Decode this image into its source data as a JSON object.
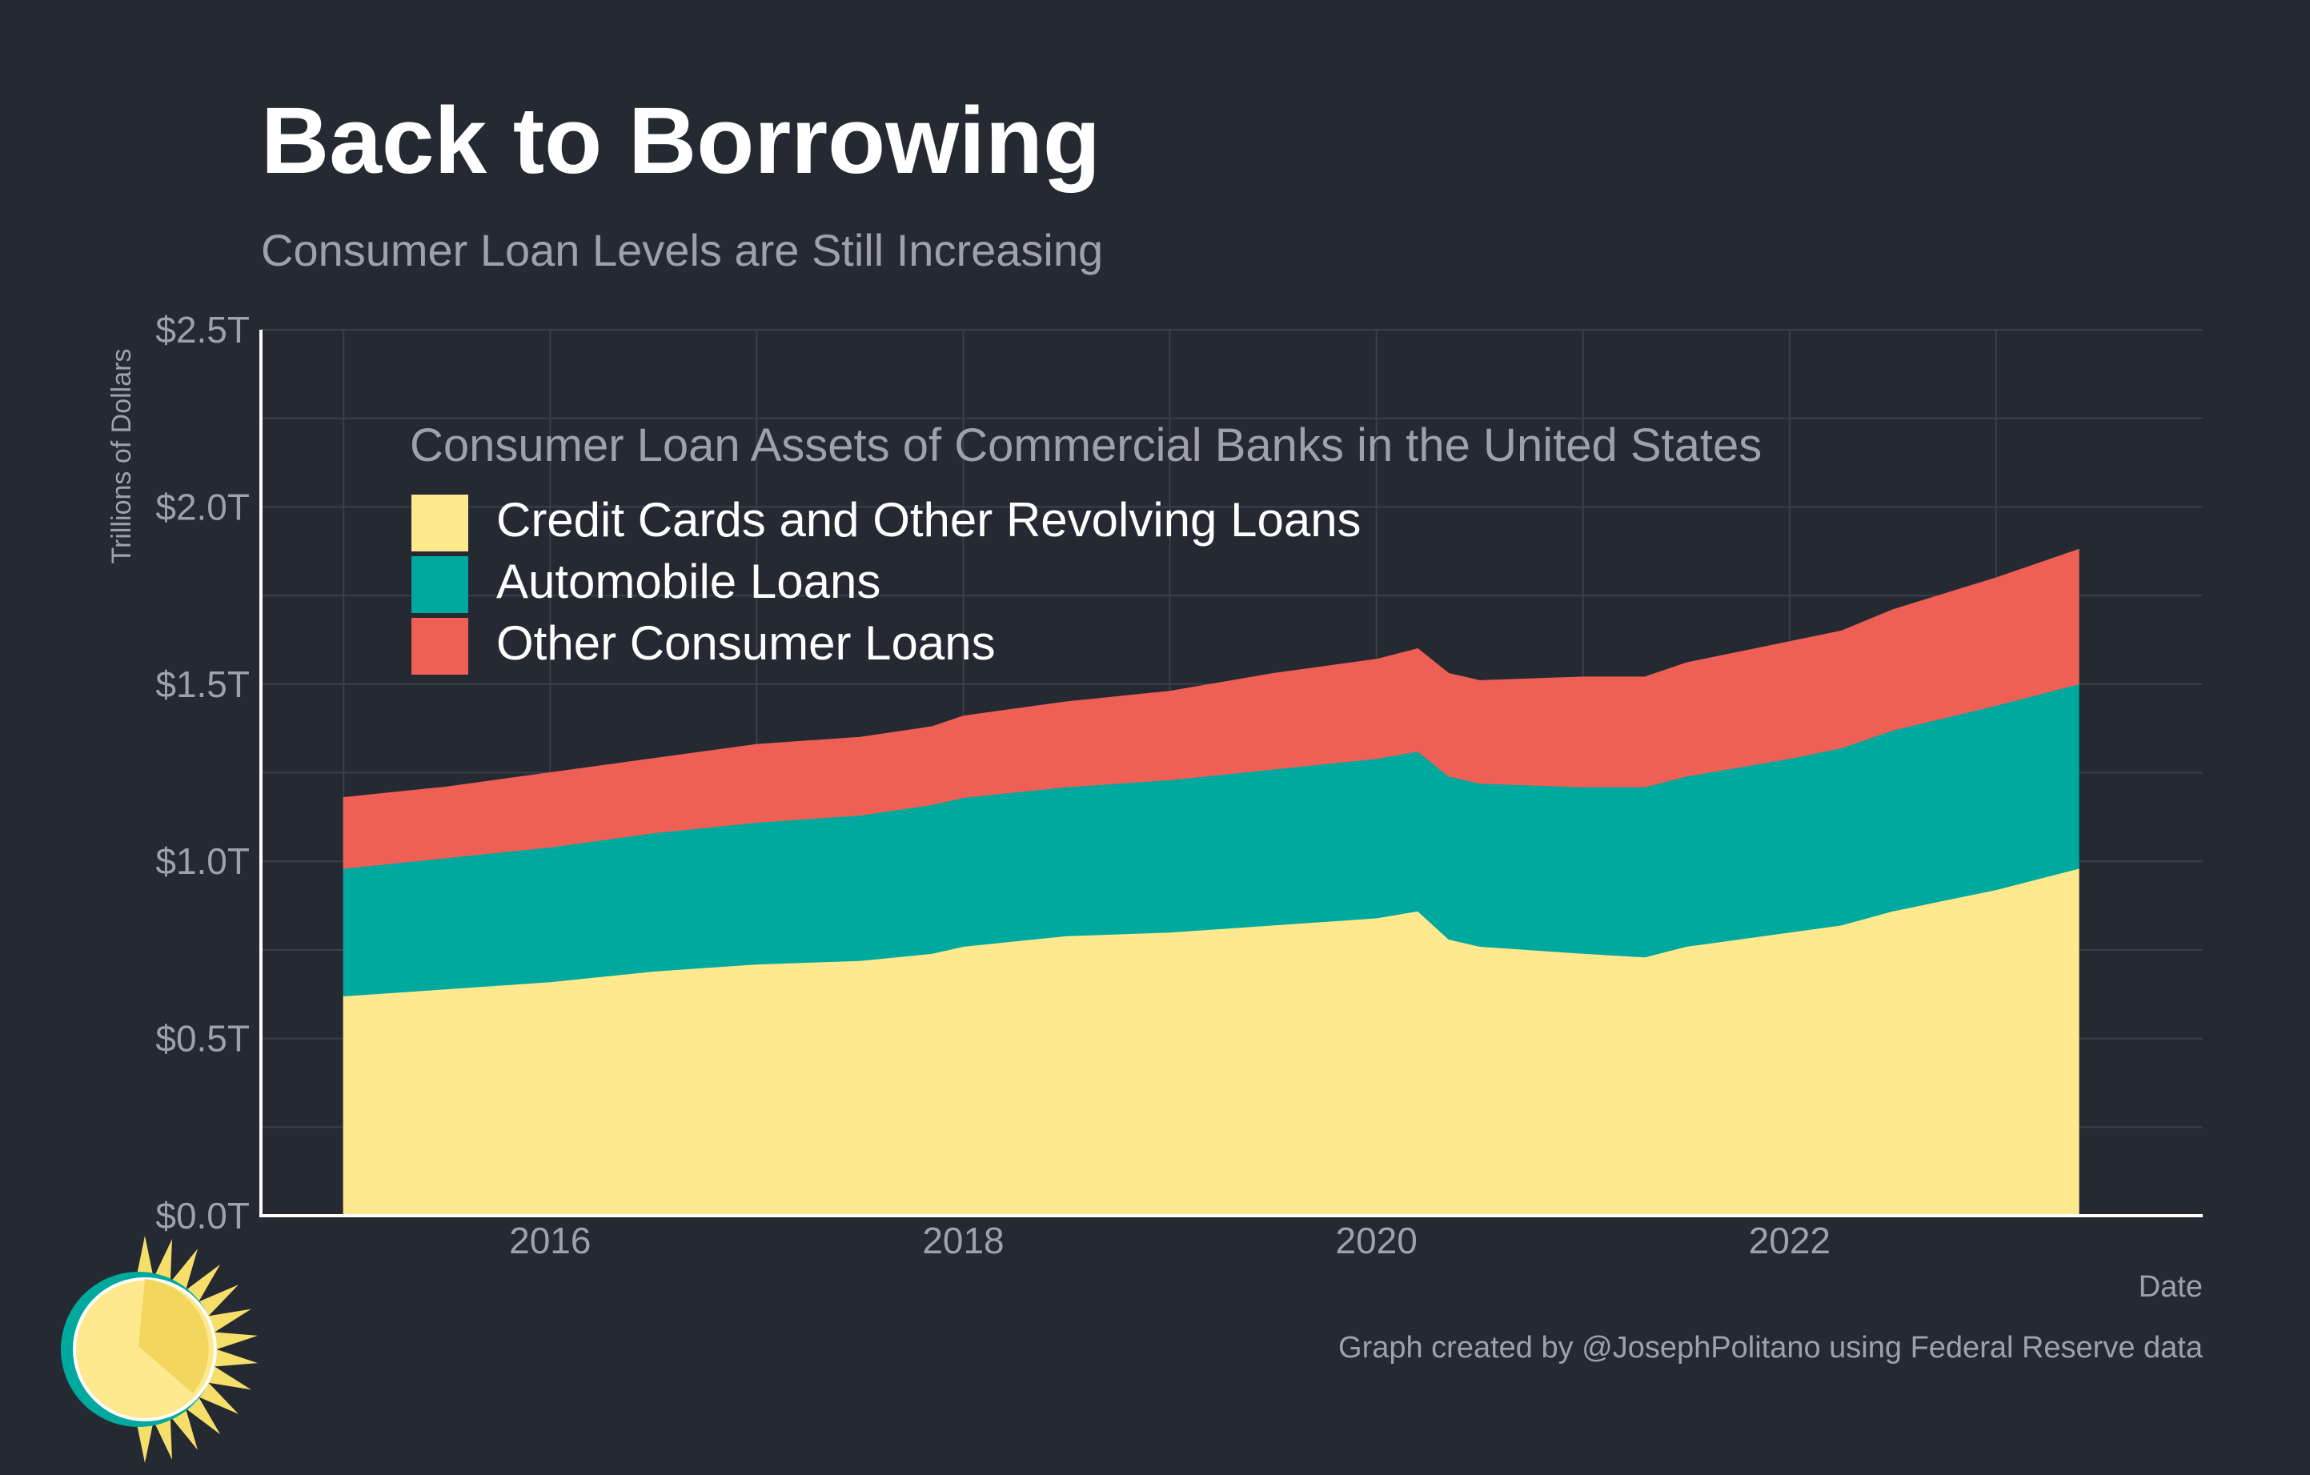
{
  "header": {
    "title": "Back to Borrowing",
    "subtitle": "Consumer Loan Levels are Still Increasing"
  },
  "footer": {
    "caption": "Graph created by @JosephPolitano using Federal Reserve data"
  },
  "logo": {
    "icon": "sun-logo-icon"
  },
  "colors": {
    "background": "#252932",
    "credit_cards": "#FFE98F",
    "automobile": "#00A99D",
    "other": "#EE6055",
    "grid": "#3a3f48",
    "axis_text": "#9ea2a8"
  },
  "chart_data": {
    "type": "area",
    "stacked": true,
    "legend_title": "Consumer Loan Assets of Commercial Banks in the United States",
    "legend_placement": "top-left",
    "xlabel": "Date",
    "ylabel": "Trillions of Dollars",
    "xlim": [
      2014.6,
      2024.0
    ],
    "ylim": [
      0,
      2.5
    ],
    "x_ticks": [
      "2016",
      "2018",
      "2020",
      "2022"
    ],
    "y_ticks": [
      "$0.0T",
      "$0.5T",
      "$1.0T",
      "$1.5T",
      "$2.0T",
      "$2.5T"
    ],
    "grid": true,
    "x": [
      2015.0,
      2015.5,
      2016.0,
      2016.5,
      2017.0,
      2017.5,
      2017.85,
      2018.0,
      2018.5,
      2019.0,
      2019.5,
      2020.0,
      2020.2,
      2020.35,
      2020.5,
      2021.0,
      2021.3,
      2021.5,
      2022.0,
      2022.25,
      2022.5,
      2023.0,
      2023.4
    ],
    "series": [
      {
        "name": "Credit Cards and Other Revolving Loans",
        "color": "#FFE98F",
        "values": [
          0.62,
          0.64,
          0.66,
          0.69,
          0.71,
          0.72,
          0.74,
          0.76,
          0.79,
          0.8,
          0.82,
          0.84,
          0.86,
          0.78,
          0.76,
          0.74,
          0.73,
          0.76,
          0.8,
          0.82,
          0.86,
          0.92,
          0.98
        ]
      },
      {
        "name": "Automobile Loans",
        "color": "#00A99D",
        "values": [
          0.36,
          0.37,
          0.38,
          0.39,
          0.4,
          0.41,
          0.42,
          0.42,
          0.42,
          0.43,
          0.44,
          0.45,
          0.45,
          0.46,
          0.46,
          0.47,
          0.48,
          0.48,
          0.49,
          0.5,
          0.51,
          0.52,
          0.52
        ]
      },
      {
        "name": "Other Consumer Loans",
        "color": "#EE6055",
        "values": [
          0.2,
          0.2,
          0.21,
          0.21,
          0.22,
          0.22,
          0.22,
          0.23,
          0.24,
          0.25,
          0.27,
          0.28,
          0.29,
          0.29,
          0.29,
          0.31,
          0.31,
          0.32,
          0.33,
          0.33,
          0.34,
          0.36,
          0.38
        ]
      }
    ]
  }
}
